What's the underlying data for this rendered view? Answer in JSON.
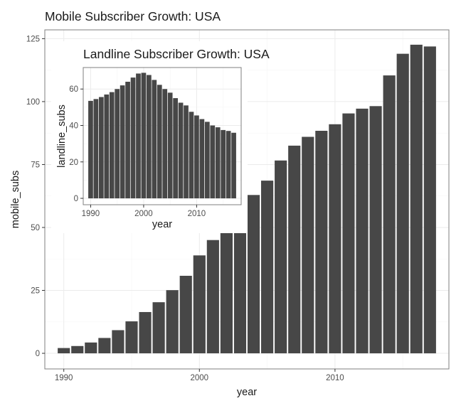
{
  "chart_data": [
    {
      "id": "main",
      "type": "bar",
      "title": "Mobile Subscriber Growth: USA",
      "xlabel": "year",
      "ylabel": "mobile_subs",
      "xlim": [
        1988.6,
        2018.4
      ],
      "ylim": [
        -6.2,
        128.5
      ],
      "xticks": [
        1990,
        2000,
        2010
      ],
      "yticks": [
        0,
        25,
        50,
        75,
        100,
        125
      ],
      "xminor": [
        1995,
        2005,
        2015
      ],
      "yminor": [
        12.5,
        37.5,
        62.5,
        87.5,
        112.5
      ],
      "grid": true,
      "x": [
        1990,
        1991,
        1992,
        1993,
        1994,
        1995,
        1996,
        1997,
        1998,
        1999,
        2000,
        2001,
        2002,
        2003,
        2004,
        2005,
        2006,
        2007,
        2008,
        2009,
        2010,
        2011,
        2012,
        2013,
        2014,
        2015,
        2016,
        2017
      ],
      "values": [
        2.1,
        2.9,
        4.3,
        6.1,
        9.2,
        12.7,
        16.4,
        20.3,
        25.1,
        30.8,
        38.9,
        45.0,
        48.0,
        48.0,
        62.9,
        68.6,
        76.6,
        82.5,
        86.0,
        88.4,
        91.0,
        95.3,
        97.2,
        98.2,
        110.4,
        119.0,
        122.6,
        121.9
      ]
    },
    {
      "id": "inset",
      "type": "bar",
      "title": "Landline Subscriber Growth: USA",
      "xlabel": "year",
      "ylabel": "landline_subs",
      "xlim": [
        1988.6,
        2018.4
      ],
      "ylim": [
        -3.5,
        71.8
      ],
      "xticks": [
        1990,
        2000,
        2010
      ],
      "yticks": [
        0,
        20,
        40,
        60
      ],
      "xminor": [
        1995,
        2005,
        2015
      ],
      "yminor": [
        10,
        30,
        50
      ],
      "grid": true,
      "x": [
        1990,
        1991,
        1992,
        1993,
        1994,
        1995,
        1996,
        1997,
        1998,
        1999,
        2000,
        2001,
        2002,
        2003,
        2004,
        2005,
        2006,
        2007,
        2008,
        2009,
        2010,
        2011,
        2012,
        2013,
        2014,
        2015,
        2016,
        2017
      ],
      "values": [
        53.5,
        54.5,
        55.6,
        57.0,
        58.3,
        60.0,
        62.0,
        64.0,
        66.3,
        68.5,
        68.9,
        67.7,
        65.0,
        62.3,
        60.0,
        58.0,
        55.0,
        52.5,
        51.0,
        47.5,
        45.5,
        43.5,
        42.0,
        40.0,
        39.0,
        37.5,
        37.0,
        36.0
      ]
    }
  ]
}
